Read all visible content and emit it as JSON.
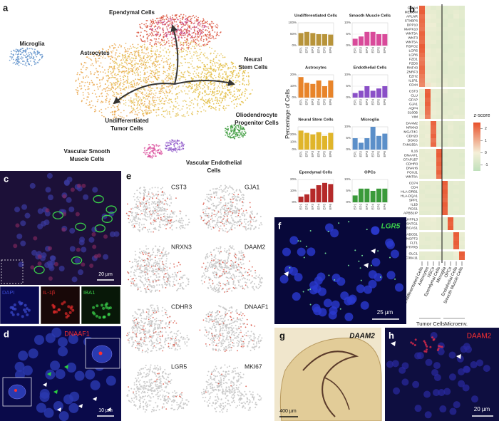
{
  "figure": {
    "panel_letters": [
      "a",
      "b",
      "c",
      "d",
      "e",
      "f",
      "g",
      "h"
    ],
    "umap_labels": [
      [
        "Microglia"
      ],
      [
        "Ependymal Cells"
      ],
      [
        "Astrocytes"
      ],
      [
        "Neural",
        "Stem Cells"
      ],
      [
        "Undifferentiated",
        "Tumor Cells"
      ],
      [
        "Oliodendrocyte",
        "Progenitor Cells"
      ],
      [
        "Vascular Smooth",
        "Muscle Cells"
      ],
      [
        "Vascular Endothelial",
        "Cells"
      ]
    ],
    "bars_ylabel": "Percentage of Cells"
  },
  "chart_data": [
    {
      "type": "bar",
      "title": "Undifferentiated Cells",
      "categories": [
        "EP1",
        "EP2",
        "EP3",
        "EP4",
        "EP5",
        "EP6"
      ],
      "values": [
        55,
        60,
        55,
        50,
        50,
        48
      ],
      "color": "#b8943a",
      "ylim": [
        0,
        100
      ],
      "yticks": [
        {
          "value": 0,
          "label": "0%"
        },
        {
          "value": 50,
          "label": "50%"
        },
        {
          "value": 100,
          "label": "100%"
        }
      ]
    },
    {
      "type": "bar",
      "title": "Smooth Muscle Cells",
      "categories": [
        "EP1",
        "EP2",
        "EP3",
        "EP4",
        "EP5",
        "EP6"
      ],
      "values": [
        3,
        4,
        6,
        6,
        5,
        5
      ],
      "color": "#d94a9a",
      "ylim": [
        0,
        10
      ],
      "yticks": [
        {
          "value": 0,
          "label": "0%"
        },
        {
          "value": 5,
          "label": "5%"
        },
        {
          "value": 10,
          "label": "10%"
        }
      ]
    },
    {
      "type": "bar",
      "title": "Astrocytes",
      "categories": [
        "EP1",
        "EP2",
        "EP3",
        "EP4",
        "EP5",
        "EP6"
      ],
      "values": [
        18,
        13,
        12,
        15,
        10,
        15
      ],
      "color": "#e8842a",
      "ylim": [
        0,
        20
      ],
      "yticks": [
        {
          "value": 0,
          "label": "0%"
        },
        {
          "value": 10,
          "label": "10%"
        },
        {
          "value": 20,
          "label": "20%"
        }
      ]
    },
    {
      "type": "bar",
      "title": "Endothelial Cells",
      "categories": [
        "EP1",
        "EP2",
        "EP3",
        "EP4",
        "EP5",
        "EP6"
      ],
      "values": [
        2,
        3,
        5,
        3,
        4,
        5
      ],
      "color": "#8a4fc7",
      "ylim": [
        0,
        10
      ],
      "yticks": [
        {
          "value": 0,
          "label": "0%"
        },
        {
          "value": 5,
          "label": "5%"
        },
        {
          "value": 10,
          "label": "10%"
        }
      ]
    },
    {
      "type": "bar",
      "title": "Neural Stem Cells",
      "categories": [
        "EP1",
        "EP2",
        "EP3",
        "EP4",
        "EP5",
        "EP6"
      ],
      "values": [
        25,
        22,
        20,
        23,
        18,
        22
      ],
      "color": "#e0b52a",
      "ylim": [
        0,
        30
      ],
      "yticks": [
        {
          "value": 0,
          "label": "0%"
        },
        {
          "value": 10,
          "label": "10%"
        },
        {
          "value": 20,
          "label": "20%"
        }
      ]
    },
    {
      "type": "bar",
      "title": "Microglia",
      "categories": [
        "EP1",
        "EP2",
        "EP3",
        "EP4",
        "EP5",
        "EP6"
      ],
      "values": [
        5,
        3,
        5,
        10,
        6,
        7
      ],
      "color": "#5b8fc9",
      "ylim": [
        0,
        10
      ],
      "yticks": [
        {
          "value": 0,
          "label": "0%"
        },
        {
          "value": 5,
          "label": "5%"
        },
        {
          "value": 10,
          "label": "10%"
        }
      ]
    },
    {
      "type": "bar",
      "title": "Ependymal Cells",
      "categories": [
        "EP1",
        "EP2",
        "EP3",
        "EP4",
        "EP5",
        "EP6"
      ],
      "values": [
        5,
        7,
        12,
        15,
        17,
        16
      ],
      "color": "#b52a2a",
      "ylim": [
        0,
        20
      ],
      "yticks": [
        {
          "value": 0,
          "label": "0%"
        },
        {
          "value": 10,
          "label": "10%"
        },
        {
          "value": 20,
          "label": "20%"
        }
      ]
    },
    {
      "type": "bar",
      "title": "OPCs",
      "categories": [
        "EP1",
        "EP2",
        "EP3",
        "EP4",
        "EP5",
        "EP6"
      ],
      "values": [
        3,
        6,
        6,
        5,
        6,
        6
      ],
      "color": "#3a9a3a",
      "ylim": [
        0,
        10
      ],
      "yticks": [
        {
          "value": 0,
          "label": "0%"
        },
        {
          "value": 5,
          "label": "5%"
        },
        {
          "value": 10,
          "label": "10%"
        }
      ]
    }
  ],
  "heatmap": {
    "columns": [
      "Undifferentiated Cells",
      "Astrocytes",
      "NSCs",
      "Ependymal Cells",
      "Microglia",
      "OPCs",
      "Endothelial Cells",
      "Smooth Muscle Cells"
    ],
    "groups": [
      "Tumor Cells",
      "Microenv."
    ],
    "legend_title": "z-score",
    "zlim": [
      -1.5,
      2.5
    ],
    "zticks": [
      2,
      1,
      0,
      -1
    ],
    "gene_groups": [
      {
        "genes": [
          "GRIA4",
          "MECOM",
          "APLNR",
          "STXBP6",
          "DPP10",
          "MAPK10",
          "WNT3A",
          "WNT3",
          "WNT5A",
          "RSPO2",
          "LGR5",
          "LGR6",
          "FZD1",
          "FZD6",
          "RNF43",
          "ZNRF3",
          "EZH2",
          "IL1R1",
          "CD44"
        ],
        "values": [
          [
            2.2,
            -0.3,
            -0.5,
            -0.4,
            -0.6,
            -0.5,
            -0.5,
            -0.6
          ],
          [
            2.3,
            -0.4,
            -0.4,
            -0.5,
            -0.6,
            -0.5,
            -0.4,
            -0.5
          ],
          [
            2.0,
            -0.2,
            -0.3,
            -0.5,
            -0.5,
            -0.6,
            -0.3,
            -0.5
          ],
          [
            2.1,
            -0.3,
            -0.4,
            -0.4,
            -0.6,
            -0.5,
            -0.5,
            -0.6
          ],
          [
            2.0,
            -0.2,
            -0.2,
            -0.5,
            -0.6,
            -0.4,
            -0.5,
            -0.6
          ],
          [
            1.9,
            -0.3,
            -0.3,
            -0.4,
            -0.5,
            -0.5,
            -0.5,
            -0.5
          ],
          [
            2.2,
            -0.4,
            -0.4,
            -0.5,
            -0.6,
            -0.5,
            -0.5,
            -0.6
          ],
          [
            2.1,
            -0.3,
            -0.4,
            -0.4,
            -0.6,
            -0.5,
            -0.4,
            -0.5
          ],
          [
            2.0,
            -0.3,
            -0.3,
            -0.5,
            -0.5,
            -0.5,
            -0.5,
            -0.6
          ],
          [
            2.3,
            -0.4,
            -0.5,
            -0.5,
            -0.6,
            -0.6,
            -0.5,
            -0.6
          ],
          [
            2.2,
            -0.2,
            -0.4,
            -0.3,
            -0.6,
            -0.5,
            -0.5,
            -0.5
          ],
          [
            2.0,
            -0.3,
            -0.4,
            -0.4,
            -0.5,
            -0.5,
            -0.5,
            -0.6
          ],
          [
            1.8,
            -0.2,
            -0.3,
            -0.4,
            -0.5,
            -0.5,
            -0.4,
            -0.5
          ],
          [
            1.9,
            -0.3,
            -0.3,
            -0.5,
            -0.6,
            -0.4,
            -0.5,
            -0.5
          ],
          [
            2.1,
            -0.4,
            -0.4,
            -0.5,
            -0.6,
            -0.5,
            -0.5,
            -0.6
          ],
          [
            2.0,
            -0.3,
            -0.4,
            -0.4,
            -0.6,
            -0.5,
            -0.5,
            -0.6
          ],
          [
            1.8,
            -0.2,
            -0.3,
            -0.4,
            -0.5,
            -0.5,
            -0.5,
            -0.5
          ],
          [
            1.7,
            -0.3,
            -0.4,
            -0.5,
            -0.4,
            -0.5,
            -0.4,
            -0.5
          ],
          [
            1.6,
            0.2,
            -0.2,
            -0.4,
            -0.3,
            -0.5,
            -0.4,
            -0.5
          ]
        ]
      },
      {
        "genes": [
          "CST3",
          "CLU",
          "GFAP",
          "GJA1",
          "AQP4",
          "S100B",
          "VIM"
        ],
        "values": [
          [
            -0.3,
            2.2,
            -0.4,
            -0.4,
            -0.3,
            -0.5,
            -0.5,
            -0.5
          ],
          [
            -0.4,
            2.3,
            -0.3,
            -0.4,
            -0.5,
            -0.5,
            -0.4,
            -0.5
          ],
          [
            -0.3,
            2.1,
            -0.4,
            -0.5,
            -0.5,
            -0.5,
            -0.5,
            -0.6
          ],
          [
            -0.4,
            2.2,
            -0.3,
            -0.4,
            -0.6,
            -0.5,
            -0.5,
            -0.5
          ],
          [
            -0.3,
            2.0,
            -0.3,
            -0.4,
            -0.5,
            -0.5,
            -0.4,
            -0.5
          ],
          [
            -0.4,
            1.9,
            -0.2,
            -0.3,
            -0.5,
            -0.4,
            -0.5,
            -0.5
          ],
          [
            -0.2,
            1.7,
            -0.3,
            -0.4,
            -0.4,
            -0.5,
            -0.3,
            -0.4
          ]
        ]
      },
      {
        "genes": [
          "DAAM2",
          "NRXN3",
          "MGAT4C",
          "CDH20",
          "DGKG",
          "FAM155A"
        ],
        "values": [
          [
            -0.3,
            -0.2,
            2.2,
            -0.4,
            -0.5,
            -0.4,
            -0.5,
            -0.5
          ],
          [
            -0.4,
            -0.3,
            2.1,
            -0.4,
            -0.6,
            -0.3,
            -0.5,
            -0.6
          ],
          [
            -0.3,
            -0.3,
            2.0,
            -0.5,
            -0.5,
            -0.4,
            -0.5,
            -0.5
          ],
          [
            -0.4,
            -0.2,
            2.2,
            -0.4,
            -0.6,
            -0.5,
            -0.5,
            -0.6
          ],
          [
            -0.3,
            -0.3,
            1.9,
            -0.4,
            -0.5,
            -0.4,
            -0.5,
            -0.5
          ],
          [
            -0.4,
            -0.3,
            2.1,
            -0.5,
            -0.6,
            -0.4,
            -0.5,
            -0.6
          ]
        ]
      },
      {
        "genes": [
          "IL16",
          "DNAAF1",
          "CFAP157",
          "CDHR3",
          "DNAH6",
          "FOXJ1",
          "WNT8A"
        ],
        "values": [
          [
            -0.4,
            -0.3,
            -0.3,
            2.2,
            -0.5,
            -0.5,
            -0.5,
            -0.5
          ],
          [
            -0.4,
            -0.4,
            -0.3,
            2.3,
            -0.6,
            -0.5,
            -0.5,
            -0.6
          ],
          [
            -0.3,
            -0.4,
            -0.4,
            2.1,
            -0.5,
            -0.5,
            -0.5,
            -0.5
          ],
          [
            -0.4,
            -0.3,
            -0.3,
            2.2,
            -0.6,
            -0.5,
            -0.5,
            -0.6
          ],
          [
            -0.4,
            -0.4,
            -0.4,
            2.0,
            -0.5,
            -0.5,
            -0.5,
            -0.5
          ],
          [
            -0.3,
            -0.3,
            -0.3,
            2.2,
            -0.6,
            -0.5,
            -0.5,
            -0.6
          ],
          [
            -0.4,
            -0.4,
            -0.3,
            1.9,
            -0.5,
            -0.5,
            -0.5,
            -0.5
          ]
        ]
      },
      {
        "genes": [
          "CD74",
          "CD4",
          "HLA-DRB1",
          "HLA-DQA1",
          "SPP1",
          "IL1B",
          "RGS1",
          "APBB1IP"
        ],
        "values": [
          [
            -0.4,
            -0.4,
            -0.4,
            -0.4,
            2.3,
            -0.5,
            -0.4,
            -0.5
          ],
          [
            -0.4,
            -0.5,
            -0.4,
            -0.5,
            2.2,
            -0.5,
            -0.5,
            -0.5
          ],
          [
            -0.5,
            -0.4,
            -0.4,
            -0.4,
            2.3,
            -0.5,
            -0.4,
            -0.5
          ],
          [
            -0.4,
            -0.5,
            -0.5,
            -0.5,
            2.2,
            -0.5,
            -0.5,
            -0.5
          ],
          [
            -0.4,
            -0.4,
            -0.4,
            -0.4,
            2.1,
            -0.5,
            -0.4,
            -0.5
          ],
          [
            -0.5,
            -0.5,
            -0.5,
            -0.5,
            2.3,
            -0.5,
            -0.5,
            -0.5
          ],
          [
            -0.4,
            -0.4,
            -0.4,
            -0.4,
            2.2,
            -0.5,
            -0.4,
            -0.5
          ],
          [
            -0.5,
            -0.5,
            -0.4,
            -0.5,
            2.2,
            -0.5,
            -0.5,
            -0.5
          ]
        ]
      },
      {
        "genes": [
          "LHFPL3",
          "SNTG1",
          "BCAS1"
        ],
        "values": [
          [
            -0.3,
            -0.3,
            -0.2,
            -0.4,
            -0.5,
            2.3,
            -0.5,
            -0.5
          ],
          [
            -0.4,
            -0.3,
            -0.3,
            -0.4,
            -0.5,
            2.2,
            -0.5,
            -0.5
          ],
          [
            -0.4,
            -0.4,
            -0.3,
            -0.4,
            -0.5,
            2.3,
            -0.5,
            -0.5
          ]
        ]
      },
      {
        "genes": [
          "ABCB1",
          "ANGPT2",
          "FLT1",
          "PTPRB"
        ],
        "values": [
          [
            -0.4,
            -0.4,
            -0.4,
            -0.4,
            -0.5,
            -0.5,
            2.3,
            -0.3
          ],
          [
            -0.4,
            -0.5,
            -0.4,
            -0.5,
            -0.5,
            -0.5,
            2.2,
            -0.4
          ],
          [
            -0.4,
            -0.4,
            -0.4,
            -0.4,
            -0.5,
            -0.5,
            2.3,
            -0.3
          ],
          [
            -0.5,
            -0.5,
            -0.4,
            -0.5,
            -0.5,
            -0.5,
            2.2,
            -0.4
          ]
        ]
      },
      {
        "genes": [
          "OLC1",
          "SLC38A11"
        ],
        "values": [
          [
            -0.4,
            -0.4,
            -0.4,
            -0.4,
            -0.5,
            -0.5,
            -0.2,
            2.3
          ],
          [
            -0.5,
            -0.4,
            -0.4,
            -0.5,
            -0.5,
            -0.5,
            -0.3,
            2.2
          ]
        ]
      }
    ]
  },
  "panel_c": {
    "scale": "20 µm",
    "channels": [
      "DAPI",
      "IL-1β",
      "IBA1"
    ]
  },
  "panel_d": {
    "stain": "DNAAF1",
    "scale": "10 µm"
  },
  "panel_e": {
    "genes": [
      "CST3",
      "GJA1",
      "NRXN3",
      "DAAM2",
      "CDHR3",
      "DNAAF1",
      "LGR5",
      "MKI67"
    ]
  },
  "panel_f": {
    "stain": "LGR5",
    "scale": "25 µm"
  },
  "panel_g": {
    "stain": "DAAM2",
    "scale": "400 µm"
  },
  "panel_h": {
    "stain": "DAAM2",
    "scale": "20 µm"
  }
}
